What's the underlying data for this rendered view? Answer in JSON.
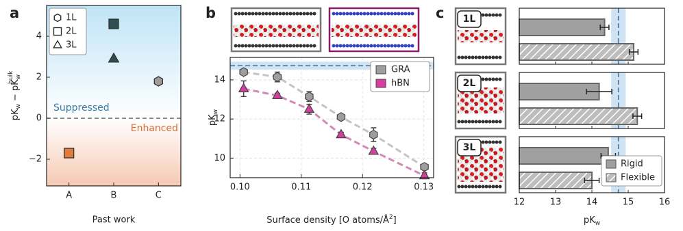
{
  "chart_data": [
    {
      "type": "scatter",
      "panel_label": "a",
      "y_label": [
        "pK",
        "w",
        " − pK",
        "w",
        "bulk"
      ],
      "x_label": "Past work",
      "categories": [
        "A",
        "B",
        "C"
      ],
      "category_colors": [
        "#e07b39",
        "#2f4f4f",
        "#9e9e9e"
      ],
      "series": [
        {
          "name": "1L",
          "marker": "hexagon",
          "values": [
            null,
            null,
            1.8
          ]
        },
        {
          "name": "2L",
          "marker": "square",
          "values": [
            -1.7,
            4.6,
            null
          ]
        },
        {
          "name": "3L",
          "marker": "triangle",
          "values": [
            null,
            2.9,
            null
          ]
        }
      ],
      "ylim": [
        -3.3,
        5.5
      ],
      "yticks": [
        {
          "value": -2,
          "label": "−2"
        },
        0,
        2,
        4
      ],
      "annotations": [
        {
          "text": "Suppressed",
          "color": "#3a7ca5"
        },
        {
          "text": "Enhanced",
          "color": "#d0703a"
        }
      ]
    },
    {
      "type": "line",
      "panel_label": "b",
      "y_label": [
        "pK",
        "w"
      ],
      "x_label": [
        "Surface density [O atoms/Å",
        "2",
        "]"
      ],
      "x": [
        0.1006,
        0.1061,
        0.1113,
        0.1165,
        0.1218,
        0.1301
      ],
      "series": [
        {
          "name": "GRA",
          "color": "#9e9e9e",
          "line_color": "#c4c4c4",
          "marker": "hexagon",
          "values": [
            14.4,
            14.15,
            13.15,
            12.1,
            11.2,
            9.55
          ],
          "errors": [
            0.15,
            0.25,
            0.25,
            0.1,
            0.35,
            0.1
          ]
        },
        {
          "name": "hBN",
          "color": "#d63fa0",
          "line_color": "#d18ab8",
          "marker": "triangle",
          "values": [
            13.55,
            13.2,
            12.5,
            11.2,
            10.35,
            9.1
          ],
          "errors": [
            0.4,
            0.12,
            0.25,
            0.12,
            0.15,
            0.15
          ]
        }
      ],
      "xlim": [
        0.0984,
        0.1316
      ],
      "xticks": [
        {
          "value": 0.1,
          "label": "0.10"
        },
        {
          "value": 0.11,
          "label": "0.11"
        },
        {
          "value": 0.12,
          "label": "0.12"
        },
        {
          "value": 0.13,
          "label": "0.13"
        }
      ],
      "ylim": [
        9.0,
        15.15
      ],
      "yticks": [
        10,
        12,
        14
      ],
      "reference": 14.73,
      "reference_band": [
        14.53,
        14.93
      ],
      "grid": true
    },
    {
      "type": "barh",
      "panel_label": "c",
      "x_label": [
        "pK",
        "w"
      ],
      "panel_labels": [
        "1L",
        "2L",
        "3L"
      ],
      "series": [
        {
          "name": "Rigid",
          "color": "#a0a0a0",
          "hatch": false,
          "values": [
            14.35,
            14.2,
            14.45
          ],
          "errors": [
            0.12,
            0.35,
            0.2
          ]
        },
        {
          "name": "Flexible",
          "color": "#bdbdbd",
          "hatch": true,
          "values": [
            15.15,
            15.25,
            14.0
          ],
          "errors": [
            0.12,
            0.12,
            0.2
          ]
        }
      ],
      "xlim": [
        12,
        16
      ],
      "xticks": [
        12,
        13,
        14,
        15,
        16
      ],
      "reference": 14.73,
      "reference_band": [
        14.53,
        14.93
      ]
    }
  ]
}
